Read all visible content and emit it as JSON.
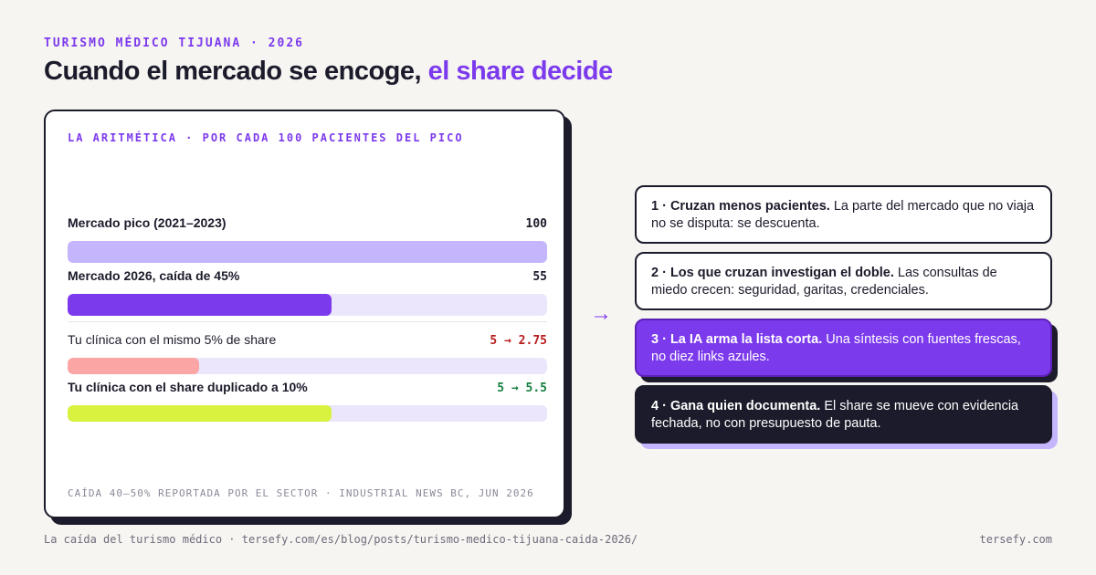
{
  "eyebrow": "TURISMO MÉDICO TIJUANA · 2026",
  "headline": {
    "main": "Cuando el mercado se encoge, ",
    "accent": "el share decide"
  },
  "card": {
    "title": "LA ARITMÉTICA · POR CADA 100 PACIENTES DEL PICO",
    "rows": [
      {
        "label": "Mercado pico (2021–2023)",
        "value": "100",
        "fill": 1.0,
        "color": "#c4b5fd",
        "value_color": "#1b1b2b"
      },
      {
        "label": "Mercado 2026, caída de 45%",
        "value": "55",
        "fill": 0.55,
        "color": "#7c3aed",
        "value_color": "#1b1b2b"
      },
      {
        "label": "Tu clínica con el mismo 5% de share",
        "value": "5 → 2.75",
        "fill": 0.275,
        "color": "#fca5a5",
        "value_color": "#b91c1c"
      },
      {
        "label": "Tu clínica con el share duplicado a 10%",
        "value": "5 → 5.5",
        "fill": 0.55,
        "color": "#d9f23f",
        "value_color": "#15803d"
      }
    ],
    "footnote": "CAÍDA 40–50% REPORTADA POR EL SECTOR · INDUSTRIAL NEWS BC, JUN 2026"
  },
  "arrow": "→",
  "steps": [
    {
      "bold": "1 · Cruzan menos pacientes.",
      "text": " La parte del mercado que no viaja no se disputa: se descuenta."
    },
    {
      "bold": "2 · Los que cruzan investigan el doble.",
      "text": " Las consultas de miedo crecen: seguridad, garitas, credenciales."
    },
    {
      "bold": "3 · La IA arma la lista corta.",
      "text": " Una síntesis con fuentes frescas, no diez links azules."
    },
    {
      "bold": "4 · Gana quien documenta.",
      "text": " El share se mueve con evidencia fechada, no con presupuesto de pauta."
    }
  ],
  "footer": {
    "left": "La caída del turismo médico · tersefy.com/es/blog/posts/turismo-medico-tijuana-caida-2026/",
    "right": "tersefy.com"
  }
}
